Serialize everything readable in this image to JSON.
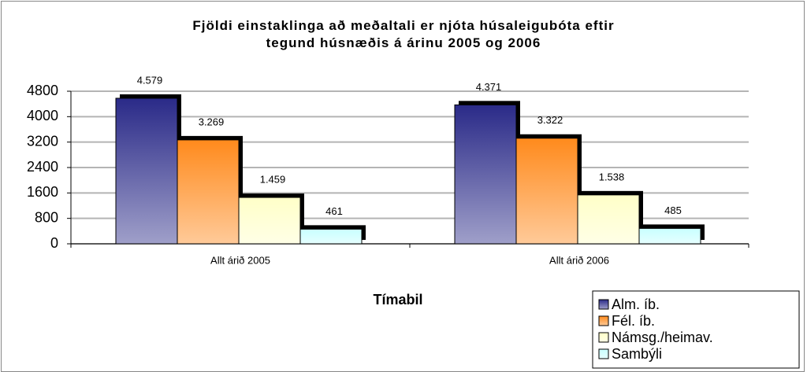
{
  "chart_data": {
    "type": "bar",
    "title": "Fjöldi einstaklinga að meðaltali er njóta húsaleigubóta eftir\ntegund húsnæðis á árinu 2005 og 2006",
    "x_label": "Tímabil",
    "categories": [
      "Allt árið 2005",
      "Allt árið 2006"
    ],
    "series": [
      {
        "name": "Alm. íb.",
        "color": "#2a2a88",
        "values": [
          4579,
          4371
        ],
        "value_labels": [
          "4.579",
          "4.371"
        ]
      },
      {
        "name": "Fél. íb.",
        "color": "#ff8a1c",
        "values": [
          3269,
          3322
        ],
        "value_labels": [
          "3.269",
          "3.322"
        ]
      },
      {
        "name": "Námsg./heimav.",
        "color": "#ffffc8",
        "values": [
          1459,
          1538
        ],
        "value_labels": [
          "1.459",
          "1.538"
        ]
      },
      {
        "name": "Sambýli",
        "color": "#c8ffff",
        "values": [
          461,
          485
        ],
        "value_labels": [
          "461",
          "485"
        ]
      }
    ],
    "ylim": [
      0,
      4800
    ],
    "yticks": [
      0,
      800,
      1600,
      2400,
      3200,
      4000,
      4800
    ],
    "grid": true,
    "legend": "bottom-right"
  }
}
